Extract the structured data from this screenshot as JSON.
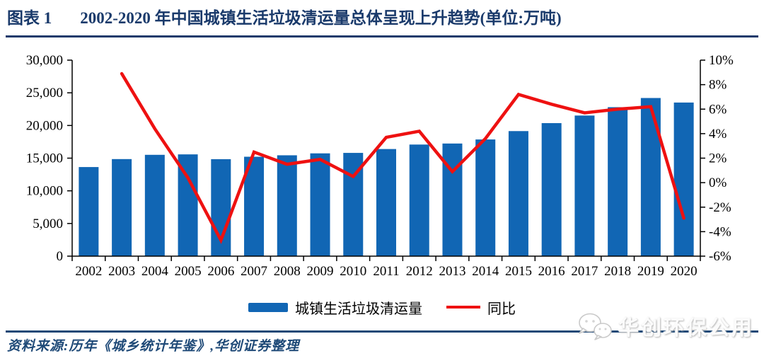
{
  "figure": {
    "label": "图表 1",
    "title": "2002-2020 年中国城镇生活垃圾清运量总体呈现上升趋势(单位:万吨)"
  },
  "colors": {
    "bar": "#1166B4",
    "line": "#EE1111",
    "title": "#1A3A6B",
    "rule": "#1F4977",
    "source_text": "#1E4977",
    "axis": "#000000"
  },
  "chart_data": {
    "type": "bar",
    "title": "2002-2020 年中国城镇生活垃圾清运量总体呈现上升趋势",
    "unit": "万吨",
    "categories": [
      "2002",
      "2003",
      "2004",
      "2005",
      "2006",
      "2007",
      "2008",
      "2009",
      "2010",
      "2011",
      "2012",
      "2013",
      "2014",
      "2015",
      "2016",
      "2017",
      "2018",
      "2019",
      "2020"
    ],
    "series": [
      {
        "name": "城镇生活垃圾清运量",
        "type": "bar",
        "axis": "left",
        "values": [
          13638,
          14857,
          15509,
          15577,
          14841,
          15215,
          15438,
          15734,
          15805,
          16395,
          17081,
          17239,
          17860,
          19142,
          20362,
          21521,
          22802,
          24206,
          23512
        ]
      },
      {
        "name": "同比",
        "type": "line",
        "axis": "right",
        "values": [
          null,
          8.9,
          4.4,
          0.4,
          -4.7,
          2.5,
          1.5,
          1.9,
          0.5,
          3.7,
          4.2,
          0.9,
          3.6,
          7.2,
          6.4,
          5.7,
          6.0,
          6.2,
          -2.9
        ]
      }
    ],
    "left_axis": {
      "min": 0,
      "max": 30000,
      "step": 5000,
      "values": [
        0,
        5000,
        10000,
        15000,
        20000,
        25000,
        30000
      ],
      "labels": [
        "0",
        "5,000",
        "10,000",
        "15,000",
        "20,000",
        "25,000",
        "30,000"
      ]
    },
    "right_axis": {
      "min": -6,
      "max": 10,
      "step": 2,
      "values": [
        -6,
        -4,
        -2,
        0,
        2,
        4,
        6,
        8,
        10
      ],
      "labels": [
        "-6%",
        "-4%",
        "-2%",
        "0%",
        "2%",
        "4%",
        "6%",
        "8%",
        "10%"
      ]
    },
    "legend_position": "bottom",
    "grid": false
  },
  "source": {
    "text": "资料来源:历年《城乡统计年鉴》,华创证券整理"
  },
  "watermark": {
    "text": "华创环保公用"
  }
}
